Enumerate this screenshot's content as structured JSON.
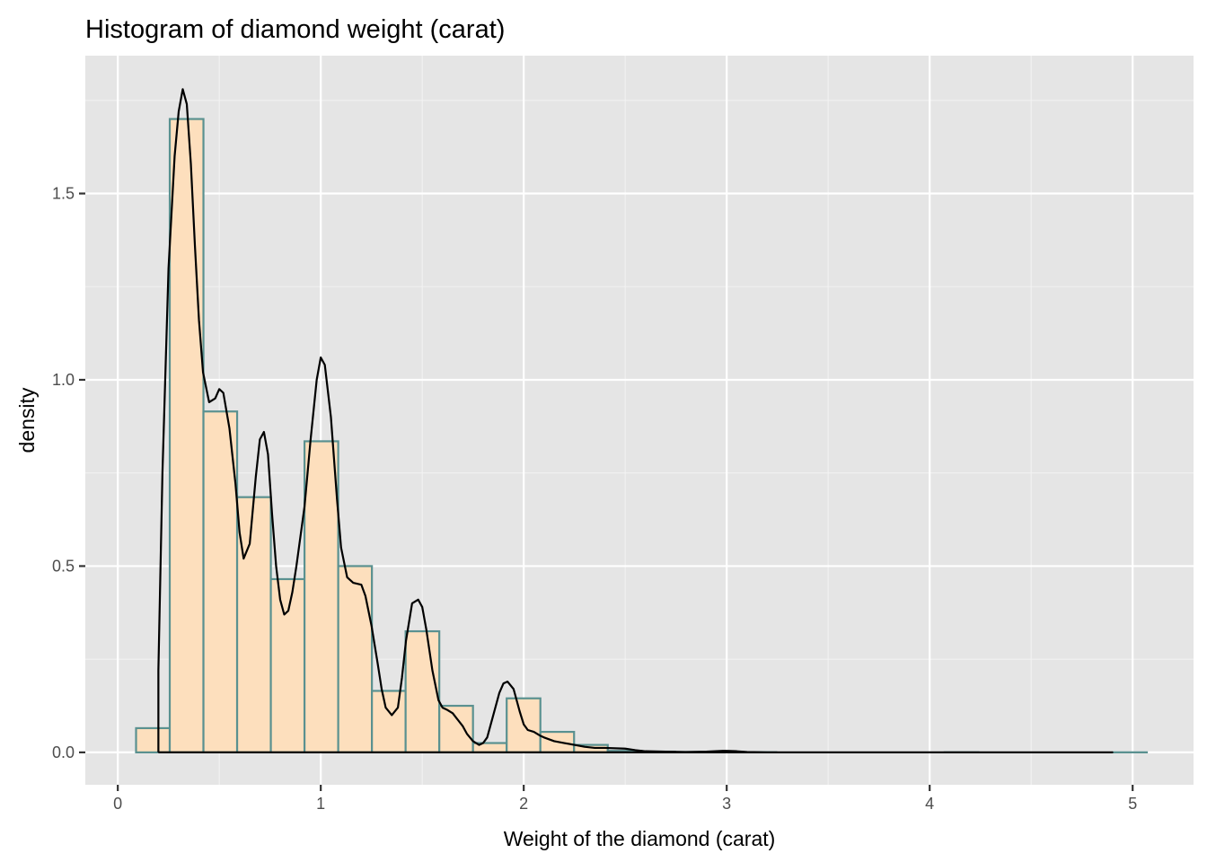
{
  "chart_data": {
    "type": "bar",
    "title": "Histogram of diamond weight (carat)",
    "xlabel": "Weight of the diamond (carat)",
    "ylabel": "density",
    "xlim": [
      -0.16,
      5.3
    ],
    "ylim": [
      -0.087,
      1.87
    ],
    "x_ticks": [
      0,
      1,
      2,
      3,
      4,
      5
    ],
    "x_tick_labels": [
      "0",
      "1",
      "2",
      "3",
      "4",
      "5"
    ],
    "y_ticks": [
      0.0,
      0.5,
      1.0,
      1.5
    ],
    "y_tick_labels": [
      "0.0",
      "0.5",
      "1.0",
      "1.5"
    ],
    "grid": true,
    "legend": "none",
    "bin_width": 0.166,
    "histogram": {
      "fill": "#FDDFBD",
      "stroke": "#5A9190",
      "bins": [
        {
          "x0": 0.09,
          "density": 0.065
        },
        {
          "x0": 0.256,
          "density": 1.7
        },
        {
          "x0": 0.422,
          "density": 0.915
        },
        {
          "x0": 0.588,
          "density": 0.685
        },
        {
          "x0": 0.754,
          "density": 0.465
        },
        {
          "x0": 0.92,
          "density": 0.835
        },
        {
          "x0": 1.086,
          "density": 0.5
        },
        {
          "x0": 1.252,
          "density": 0.165
        },
        {
          "x0": 1.418,
          "density": 0.325
        },
        {
          "x0": 1.584,
          "density": 0.125
        },
        {
          "x0": 1.75,
          "density": 0.025
        },
        {
          "x0": 1.916,
          "density": 0.145
        },
        {
          "x0": 2.082,
          "density": 0.055
        },
        {
          "x0": 2.248,
          "density": 0.02
        },
        {
          "x0": 2.414,
          "density": 0.004
        },
        {
          "x0": 2.58,
          "density": 0.002
        },
        {
          "x0": 2.746,
          "density": 0.001
        },
        {
          "x0": 2.912,
          "density": 0.001
        },
        {
          "x0": 3.078,
          "density": 0.0005
        },
        {
          "x0": 3.244,
          "density": 0.0
        },
        {
          "x0": 3.41,
          "density": 0.0
        },
        {
          "x0": 3.576,
          "density": 0.0
        },
        {
          "x0": 3.742,
          "density": 0.0
        },
        {
          "x0": 3.908,
          "density": 0.0
        },
        {
          "x0": 4.074,
          "density": 0.0002
        },
        {
          "x0": 4.24,
          "density": 0.0
        },
        {
          "x0": 4.406,
          "density": 0.0
        },
        {
          "x0": 4.572,
          "density": 0.0
        },
        {
          "x0": 4.738,
          "density": 0.0
        },
        {
          "x0": 4.904,
          "density": 0.0002
        }
      ]
    },
    "density_curve": {
      "stroke": "#000000",
      "x": [
        0.2,
        0.2,
        0.22,
        0.25,
        0.28,
        0.3,
        0.32,
        0.34,
        0.36,
        0.38,
        0.4,
        0.42,
        0.45,
        0.48,
        0.5,
        0.52,
        0.55,
        0.58,
        0.6,
        0.62,
        0.65,
        0.68,
        0.7,
        0.72,
        0.74,
        0.76,
        0.78,
        0.8,
        0.82,
        0.84,
        0.86,
        0.88,
        0.9,
        0.92,
        0.95,
        0.98,
        1.0,
        1.02,
        1.05,
        1.08,
        1.1,
        1.13,
        1.16,
        1.2,
        1.22,
        1.25,
        1.28,
        1.3,
        1.32,
        1.35,
        1.38,
        1.4,
        1.42,
        1.45,
        1.48,
        1.5,
        1.52,
        1.55,
        1.58,
        1.6,
        1.62,
        1.65,
        1.7,
        1.72,
        1.75,
        1.78,
        1.8,
        1.82,
        1.85,
        1.88,
        1.9,
        1.92,
        1.95,
        1.98,
        2.0,
        2.02,
        2.05,
        2.08,
        2.1,
        2.15,
        2.2,
        2.25,
        2.3,
        2.35,
        2.4,
        2.5,
        2.55,
        2.6,
        2.7,
        2.8,
        2.9,
        2.98,
        3.0,
        3.05,
        3.1,
        3.2,
        3.5,
        4.0,
        4.5,
        4.9,
        4.9,
        4.5,
        4.0,
        3.0,
        2.0,
        1.0,
        0.2
      ],
      "y": [
        0.0,
        0.22,
        0.75,
        1.3,
        1.6,
        1.72,
        1.78,
        1.74,
        1.58,
        1.36,
        1.16,
        1.02,
        0.94,
        0.95,
        0.975,
        0.965,
        0.87,
        0.72,
        0.59,
        0.52,
        0.56,
        0.74,
        0.84,
        0.86,
        0.8,
        0.64,
        0.5,
        0.41,
        0.37,
        0.38,
        0.43,
        0.5,
        0.58,
        0.66,
        0.84,
        1.0,
        1.06,
        1.04,
        0.9,
        0.68,
        0.55,
        0.47,
        0.455,
        0.45,
        0.42,
        0.34,
        0.24,
        0.17,
        0.12,
        0.1,
        0.12,
        0.2,
        0.3,
        0.4,
        0.41,
        0.39,
        0.33,
        0.22,
        0.14,
        0.12,
        0.115,
        0.105,
        0.07,
        0.05,
        0.03,
        0.02,
        0.025,
        0.04,
        0.1,
        0.16,
        0.185,
        0.19,
        0.17,
        0.11,
        0.075,
        0.06,
        0.055,
        0.045,
        0.04,
        0.03,
        0.025,
        0.02,
        0.015,
        0.012,
        0.012,
        0.01,
        0.006,
        0.003,
        0.002,
        0.001,
        0.002,
        0.004,
        0.004,
        0.003,
        0.001,
        0.0,
        0.0,
        0.0,
        0.0,
        0.0,
        0.0,
        0.0,
        0.0,
        0.0,
        0.0,
        0.0,
        0.0
      ]
    }
  }
}
